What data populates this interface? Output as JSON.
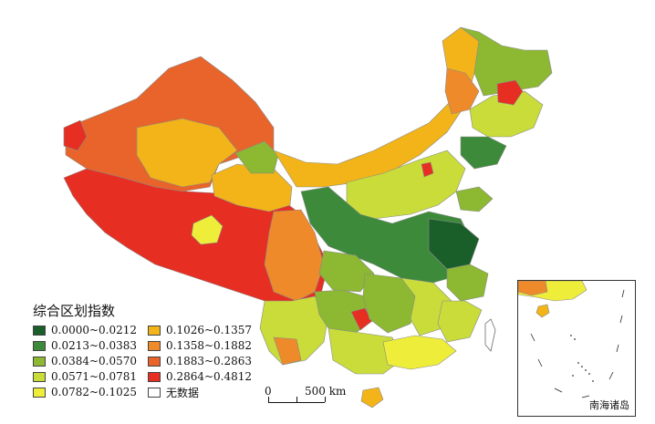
{
  "legend": {
    "title": "综合区划指数",
    "items": [
      {
        "label": "0.0000~0.0212",
        "color": "#1a5e2a"
      },
      {
        "label": "0.0213~0.0383",
        "color": "#3d8b3a"
      },
      {
        "label": "0.0384~0.0570",
        "color": "#8cb832"
      },
      {
        "label": "0.0571~0.0781",
        "color": "#c9dc3a"
      },
      {
        "label": "0.0782~0.1025",
        "color": "#eeee3a"
      },
      {
        "label": "0.1026~0.1357",
        "color": "#f2b418"
      },
      {
        "label": "0.1358~0.1882",
        "color": "#ee8a2a"
      },
      {
        "label": "0.1883~0.2863",
        "color": "#e8642a"
      },
      {
        "label": "0.2864~0.4812",
        "color": "#e62e22"
      },
      {
        "label": "无数据",
        "color": "#ffffff"
      }
    ]
  },
  "scale_bar": {
    "start": "0",
    "end": "500 km"
  },
  "inset": {
    "label": "南海诸岛"
  }
}
